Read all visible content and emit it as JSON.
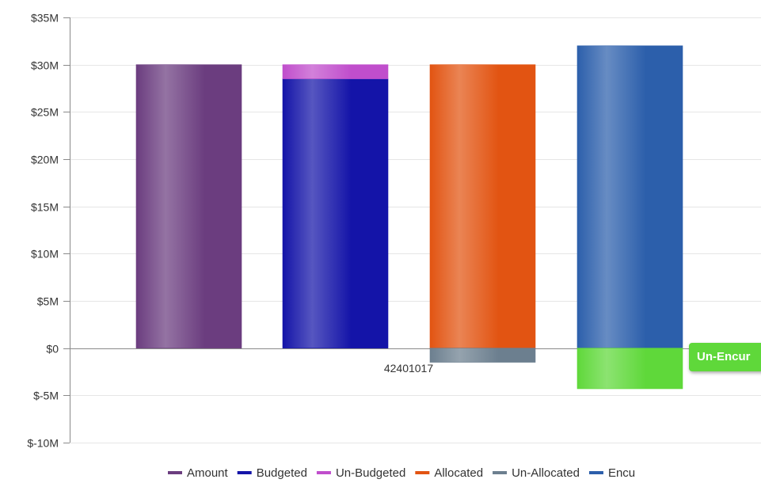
{
  "chart_data": {
    "type": "bar",
    "stacked": true,
    "category_label": "42401017",
    "y_ticks": [
      "$35M",
      "$30M",
      "$25M",
      "$20M",
      "$15M",
      "$10M",
      "$5M",
      "$0",
      "$-5M",
      "$-10M"
    ],
    "ylim": [
      -10,
      35
    ],
    "grid": true,
    "legend_position": "bottom",
    "series": [
      {
        "name": "Amount",
        "color": "#6b3d7f",
        "group": 0,
        "value": 30
      },
      {
        "name": "Budgeted",
        "color": "#1414a8",
        "group": 1,
        "value": 28.5
      },
      {
        "name": "Un-Budgeted",
        "color": "#c04ecc",
        "group": 1,
        "value": 1.5
      },
      {
        "name": "Allocated",
        "color": "#e25412",
        "group": 2,
        "value": 30
      },
      {
        "name": "Un-Allocated",
        "color": "#6c7f8f",
        "group": 2,
        "value": -1.5
      },
      {
        "name": "Encu",
        "color": "#2c5fab",
        "group": 3,
        "value": 32
      },
      {
        "name": "Un-Encumbered",
        "color": "#5fd83a",
        "group": 3,
        "value": -4.3,
        "in_legend": false
      }
    ],
    "tooltip_text": "Un-Encur"
  }
}
